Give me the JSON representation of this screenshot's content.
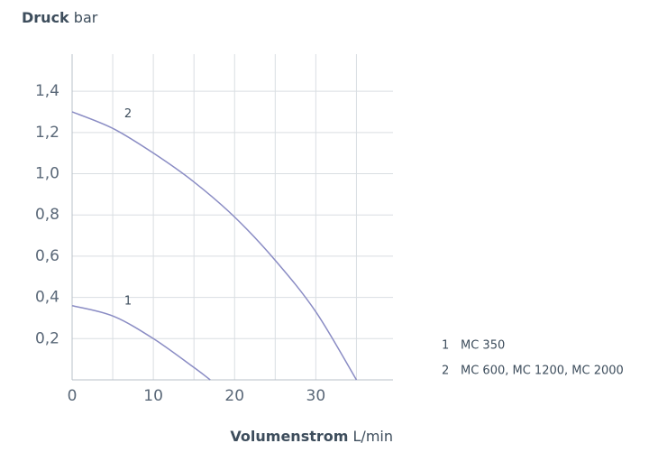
{
  "chart_data": {
    "type": "line",
    "y_label": {
      "name": "Druck",
      "unit": "bar"
    },
    "x_label": {
      "name": "Volumenstrom",
      "unit": "L/min"
    },
    "xlim": [
      0,
      39.5
    ],
    "ylim": [
      0,
      1.58
    ],
    "xticks": [
      0,
      10,
      20,
      30
    ],
    "xgrid": [
      5,
      15,
      25,
      35
    ],
    "yticks": [
      {
        "value": 0.2,
        "label": "0,2"
      },
      {
        "value": 0.4,
        "label": "0,4"
      },
      {
        "value": 0.6,
        "label": "0,6"
      },
      {
        "value": 0.8,
        "label": "0,8"
      },
      {
        "value": 1.0,
        "label": "1,0"
      },
      {
        "value": 1.2,
        "label": "1,2"
      },
      {
        "value": 1.4,
        "label": "1,4"
      }
    ],
    "grid": true,
    "series": [
      {
        "key": "1",
        "name": "MC 350",
        "color": "#8a8cc4",
        "x": [
          0,
          5,
          10,
          15,
          17
        ],
        "values": [
          0.36,
          0.31,
          0.2,
          0.06,
          0
        ]
      },
      {
        "key": "2",
        "name": "MC 600, MC 1200, MC 2000",
        "color": "#8a8cc4",
        "x": [
          0,
          5,
          10,
          15,
          20,
          25,
          30,
          35
        ],
        "values": [
          1.3,
          1.22,
          1.1,
          0.96,
          0.79,
          0.58,
          0.33,
          0
        ]
      }
    ]
  }
}
